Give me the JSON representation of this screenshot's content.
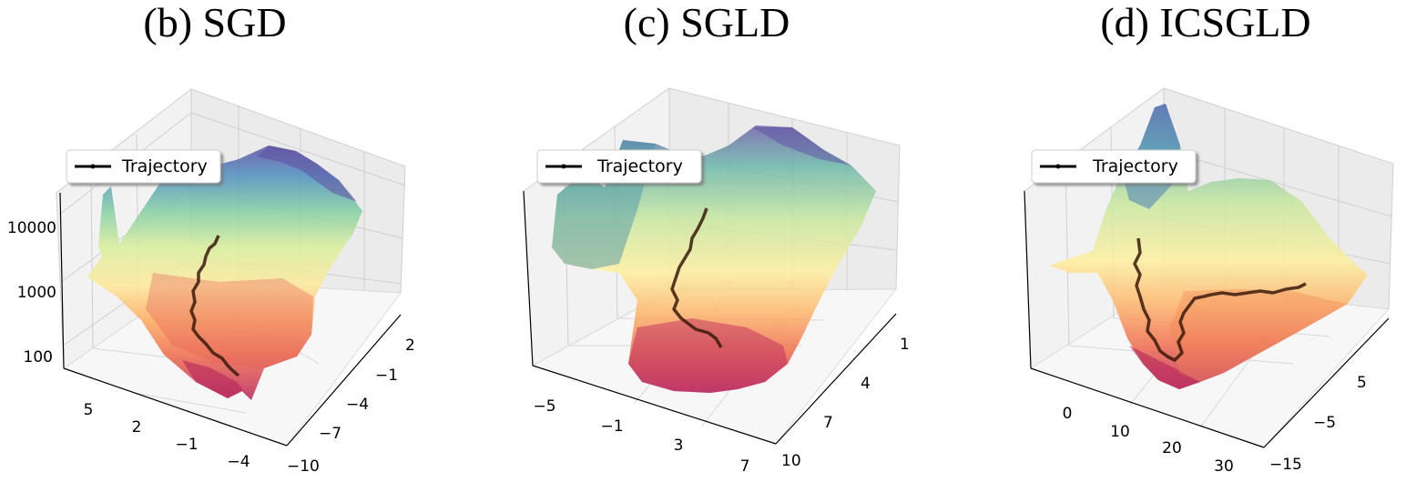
{
  "chart_data": [
    {
      "type": "surface3d",
      "title": "(b) SGD",
      "legend": [
        "Trajectory"
      ],
      "legend_placement": "upper-left",
      "z_ticks": [
        "10000",
        "1000",
        "100"
      ],
      "z_scale": "log",
      "left_axis_ticks": [
        "5",
        "2",
        "−1",
        "−4"
      ],
      "right_axis_ticks": [
        "2",
        "−1",
        "−4",
        "−7",
        "−10"
      ],
      "colormap": "Spectral",
      "trajectory_color": "#3a1a0a"
    },
    {
      "type": "surface3d",
      "title": "(c) SGLD",
      "legend": [
        "Trajectory"
      ],
      "legend_placement": "upper-left",
      "left_axis_ticks": [
        "−5",
        "−1",
        "3",
        "7"
      ],
      "right_axis_ticks": [
        "1",
        "4",
        "7",
        "10"
      ],
      "colormap": "Spectral",
      "trajectory_color": "#3a1a0a"
    },
    {
      "type": "surface3d",
      "title": "(d) ICSGLD",
      "legend": [
        "Trajectory"
      ],
      "legend_placement": "upper-left",
      "left_axis_ticks": [
        "0",
        "10",
        "20",
        "30"
      ],
      "right_axis_ticks": [
        "5",
        "−5",
        "−15"
      ],
      "colormap": "Spectral",
      "trajectory_color": "#3a1a0a"
    }
  ]
}
